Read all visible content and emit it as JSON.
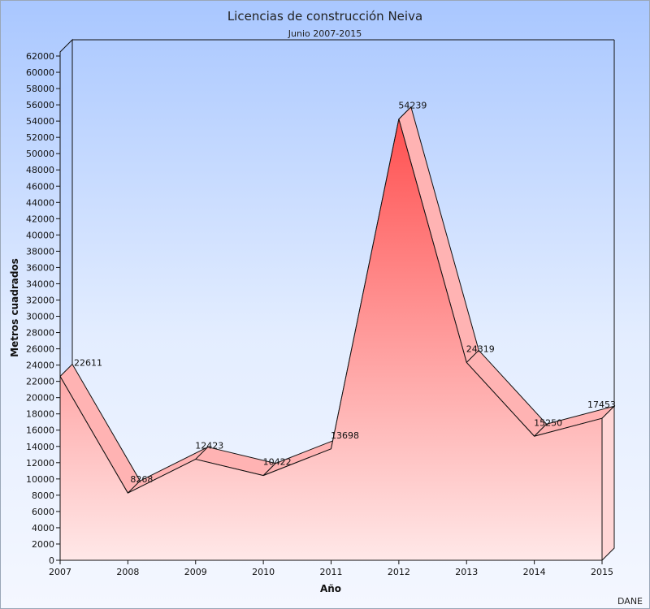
{
  "chart_data": {
    "type": "area",
    "title": "Licencias de construcción Neiva",
    "subtitle": "Junio 2007-2015",
    "xlabel": "Año",
    "ylabel": "Metros cuadrados",
    "categories": [
      "2007",
      "2008",
      "2009",
      "2010",
      "2011",
      "2012",
      "2013",
      "2014",
      "2015"
    ],
    "series": [
      {
        "values": [
          22611,
          8268,
          12423,
          10422,
          13698,
          54239,
          24319,
          15250,
          17453
        ]
      }
    ],
    "ylim": [
      0,
      62000
    ],
    "ytick_step": 2000,
    "legend": "none",
    "grid": false,
    "three_d": true,
    "colors": {
      "area_top": "#ff5050",
      "area_bottom": "#ffe8e8",
      "edge": "#111111"
    }
  },
  "credit": "DANE"
}
